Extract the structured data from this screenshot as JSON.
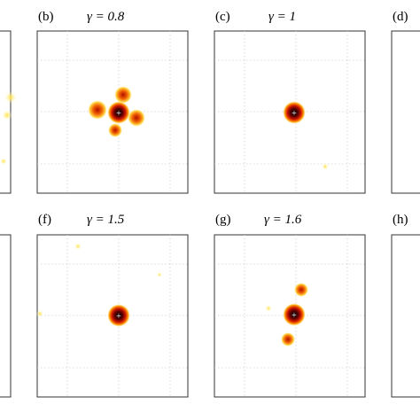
{
  "panels": [
    {
      "label": "(b)",
      "title": "γ = 0.8"
    },
    {
      "label": "(c)",
      "title": "γ = 1"
    },
    {
      "label": "(d)"
    },
    {
      "label": "(f)",
      "title": "γ = 1.5"
    },
    {
      "label": "(g)",
      "title": "γ = 1.6"
    },
    {
      "label": "(h)"
    }
  ]
}
